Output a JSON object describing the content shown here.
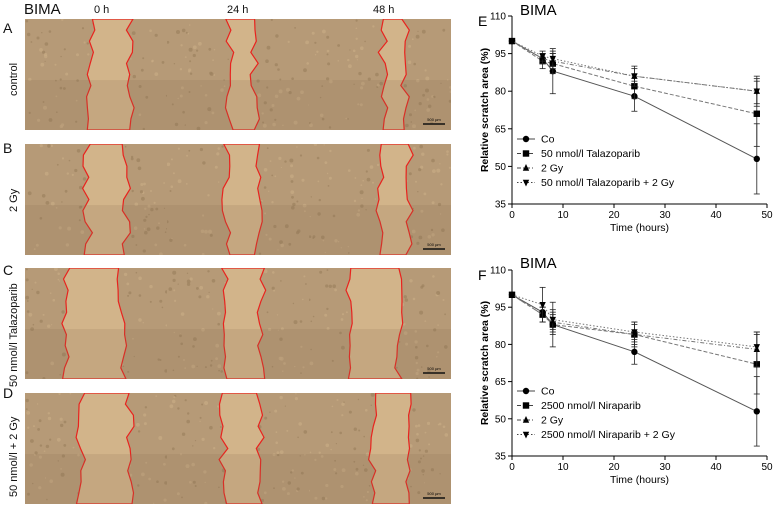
{
  "micrographs": {
    "title": "BIMA",
    "timepoints": [
      "0 h",
      "24 h",
      "48 h"
    ],
    "rows": [
      {
        "letter": "A",
        "label": "control"
      },
      {
        "letter": "B",
        "label": "2 Gy"
      },
      {
        "letter": "C",
        "label": "50 nmol/l Talazoparib"
      },
      {
        "letter": "D",
        "label": "50 nmol/l + 2 Gy"
      }
    ],
    "scale_bar": "500 µm",
    "colors": {
      "tissue": "#b69a77",
      "gap": "#d2b48a",
      "outline": "#e8231e"
    }
  },
  "chart_data": [
    {
      "type": "line",
      "panel_letter": "E",
      "title": "BIMA",
      "xlabel": "Time (hours)",
      "ylabel": "Relative scratch area (%)",
      "xlim": [
        0,
        50
      ],
      "ylim": [
        35,
        110
      ],
      "xticks": [
        0,
        10,
        20,
        30,
        40,
        50
      ],
      "yticks": [
        35,
        50,
        65,
        80,
        95,
        110
      ],
      "x": [
        0,
        6,
        8,
        24,
        48
      ],
      "series": [
        {
          "name": "Co",
          "marker": "circle",
          "values": [
            100,
            93,
            88,
            78,
            53
          ],
          "errors": [
            0,
            2,
            9,
            6,
            14
          ],
          "dash": "solid"
        },
        {
          "name": "50 nmol/l Talazoparib",
          "marker": "square",
          "values": [
            100,
            92,
            91,
            82,
            71
          ],
          "errors": [
            0,
            3,
            4,
            5,
            13
          ],
          "dash": "dash"
        },
        {
          "name": "2 Gy",
          "marker": "triangle-up",
          "values": [
            100,
            93,
            92,
            86,
            80
          ],
          "errors": [
            0,
            2,
            3,
            3,
            6
          ],
          "dash": "dashdot"
        },
        {
          "name": "50 nmol/l Talazoparib + 2 Gy",
          "marker": "triangle-down",
          "values": [
            100,
            94,
            93,
            86,
            80
          ],
          "errors": [
            0,
            2,
            3,
            4,
            5
          ],
          "dash": "dot"
        }
      ],
      "legend": "bottom-left",
      "grid": false
    },
    {
      "type": "line",
      "panel_letter": "F",
      "title": "BIMA",
      "xlabel": "Time (hours)",
      "ylabel": "Relative scratch area (%)",
      "xlim": [
        0,
        50
      ],
      "ylim": [
        35,
        110
      ],
      "xticks": [
        0,
        10,
        20,
        30,
        40,
        50
      ],
      "yticks": [
        35,
        50,
        65,
        80,
        95,
        110
      ],
      "x": [
        0,
        6,
        8,
        24,
        48
      ],
      "series": [
        {
          "name": "Co",
          "marker": "circle",
          "values": [
            100,
            93,
            88,
            77,
            53
          ],
          "errors": [
            0,
            2,
            9,
            5,
            14
          ],
          "dash": "solid"
        },
        {
          "name": "2500 nmol/l Niraparib",
          "marker": "square",
          "values": [
            100,
            92,
            88,
            84,
            72
          ],
          "errors": [
            0,
            3,
            4,
            5,
            12
          ],
          "dash": "dash"
        },
        {
          "name": "2 Gy",
          "marker": "triangle-up",
          "values": [
            100,
            92,
            89,
            84,
            78
          ],
          "errors": [
            0,
            3,
            4,
            4,
            7
          ],
          "dash": "dashdot"
        },
        {
          "name": "2500 nmol/l Niraparib + 2 Gy",
          "marker": "triangle-down",
          "values": [
            100,
            96,
            90,
            85,
            79
          ],
          "errors": [
            0,
            7,
            4,
            4,
            6
          ],
          "dash": "dot"
        }
      ],
      "legend": "bottom-left",
      "grid": false
    }
  ]
}
